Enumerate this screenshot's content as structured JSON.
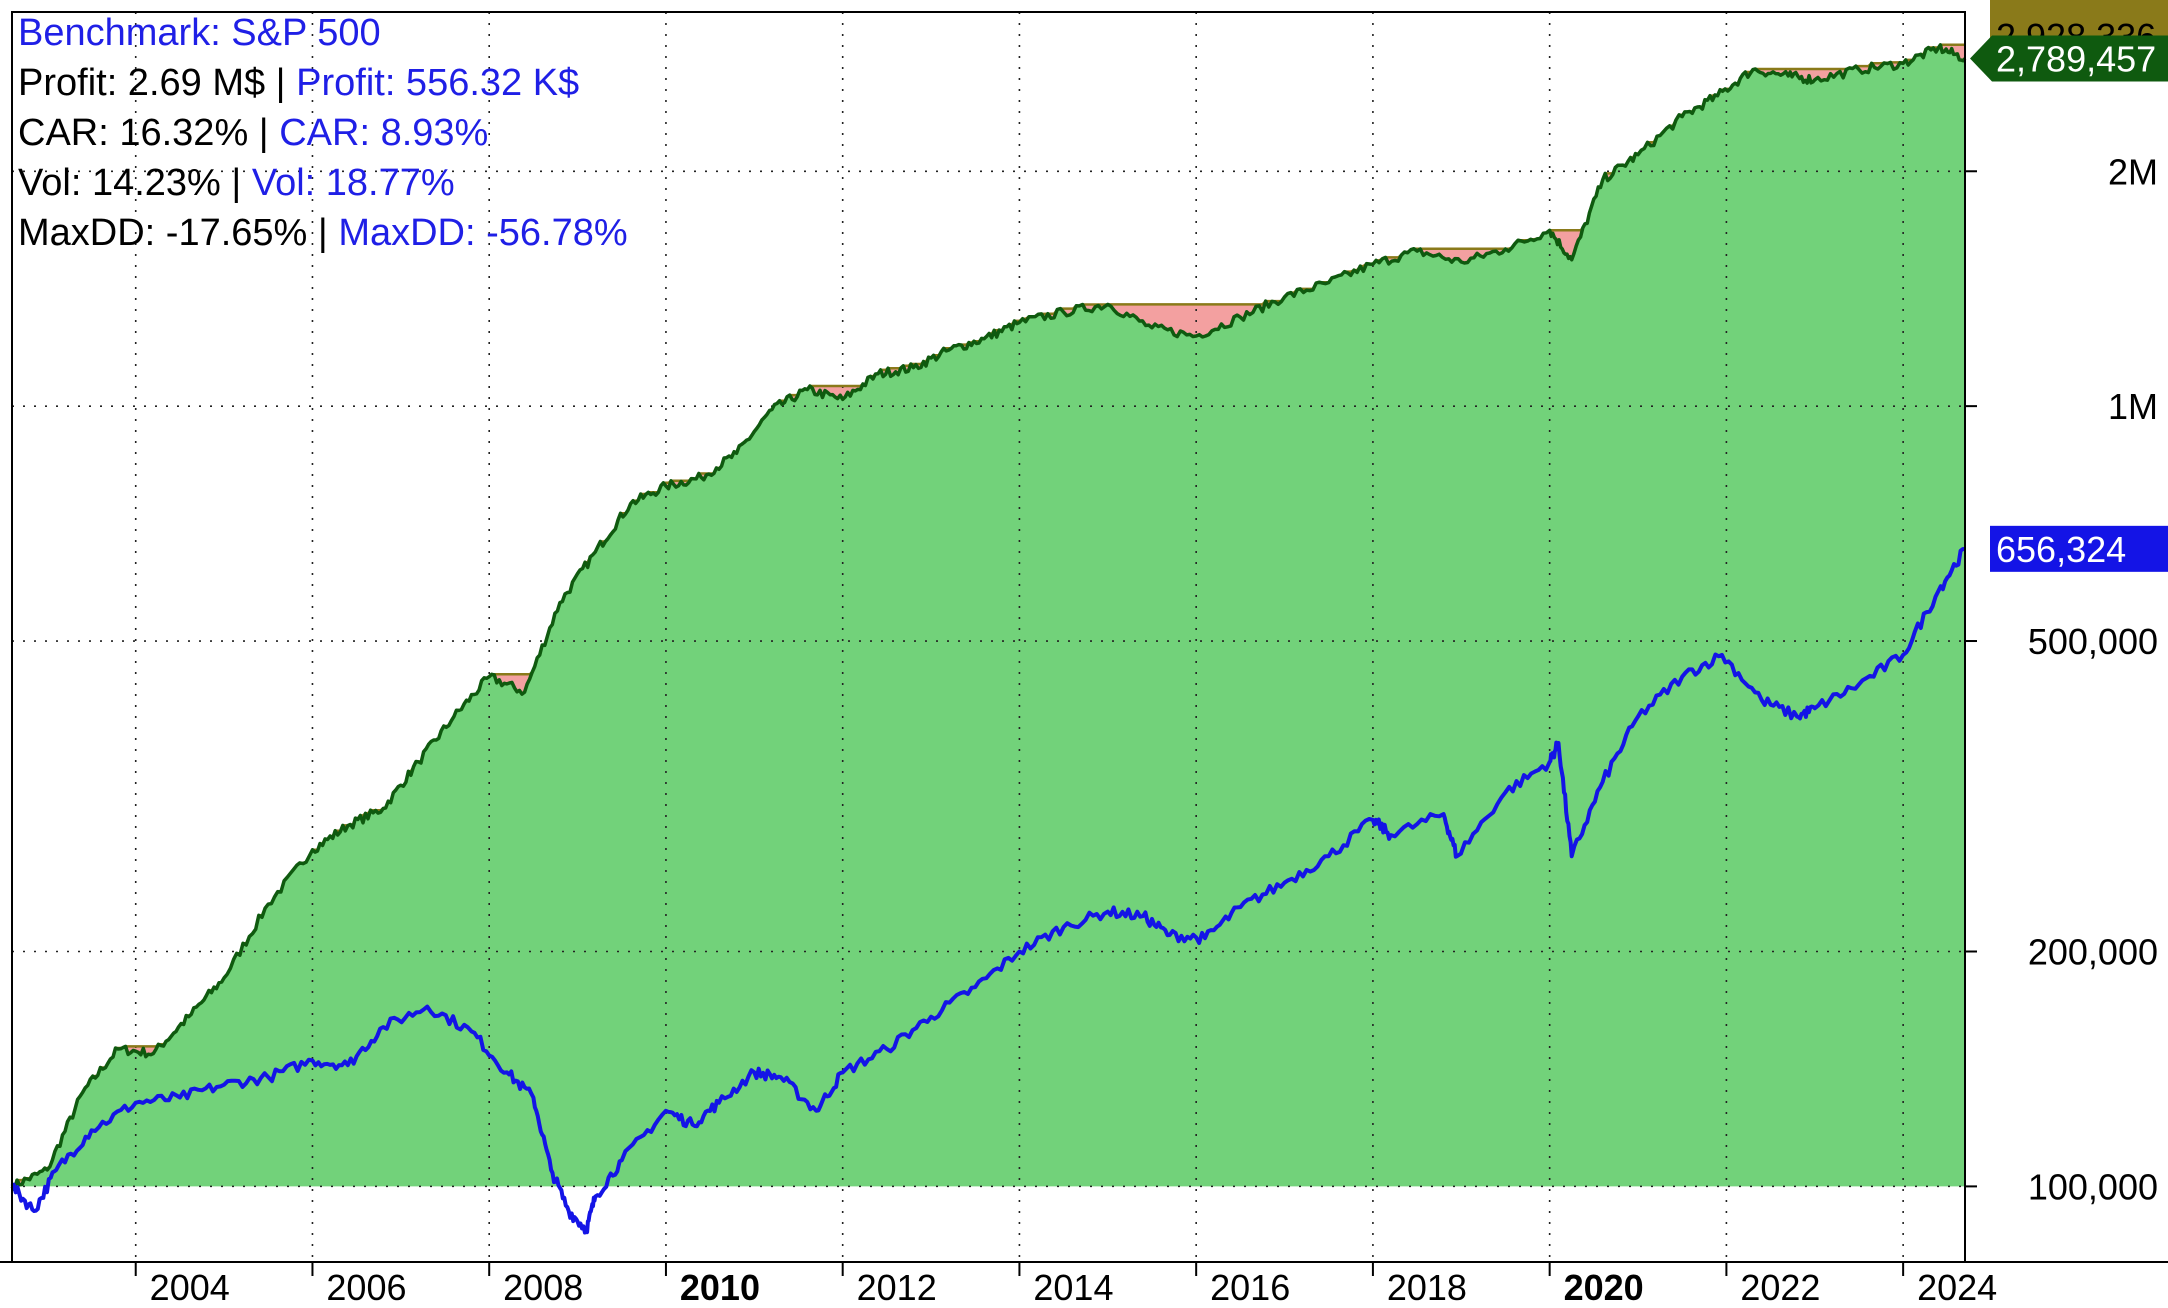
{
  "chart_data": {
    "type": "area",
    "scale": "log",
    "ylim": [
      80000,
      3200000
    ],
    "xlim": [
      2002.6,
      2024.7
    ],
    "grid": true,
    "x_ticks": [
      2004,
      2006,
      2008,
      2010,
      2012,
      2014,
      2016,
      2018,
      2020,
      2022,
      2024
    ],
    "x_tick_labels": [
      "2004",
      "2006",
      "2008",
      "2010",
      "2012",
      "2014",
      "2016",
      "2018",
      "2020",
      "2022",
      "2024"
    ],
    "x_tick_bold": [
      "2010",
      "2020"
    ],
    "y_ticks": [
      100000,
      200000,
      500000,
      1000000,
      2000000
    ],
    "y_tick_labels": [
      "100,000",
      "200,000",
      "500,000",
      "1M",
      "2M"
    ],
    "baseline": 100000,
    "colors": {
      "strategy_fill": "#72d27a",
      "strategy_line": "#0f5a0f",
      "drawdown_fill": "#f3a0a0",
      "peak_line": "#8a7a1a",
      "benchmark_line": "#1414e6",
      "benchmark_tag": "#1414e6",
      "strategy_tag": "#0f5a0f",
      "peak_tag": "#8a7a1a"
    },
    "series": [
      {
        "role": "strategy",
        "x": [
          2002.6,
          2003.0,
          2003.4,
          2003.8,
          2004.2,
          2004.6,
          2005.0,
          2005.5,
          2006.0,
          2006.4,
          2006.8,
          2007.2,
          2007.6,
          2008.0,
          2008.4,
          2008.8,
          2009.2,
          2009.6,
          2010.0,
          2010.4,
          2010.8,
          2011.2,
          2011.6,
          2012.0,
          2012.4,
          2012.8,
          2013.2,
          2013.6,
          2014.0,
          2014.5,
          2015.0,
          2015.5,
          2016.0,
          2016.5,
          2017.0,
          2017.5,
          2018.0,
          2018.5,
          2019.0,
          2019.5,
          2020.0,
          2020.25,
          2020.6,
          2021.0,
          2021.5,
          2021.9,
          2022.3,
          2022.7,
          2023.0,
          2023.5,
          2024.0,
          2024.4,
          2024.7
        ],
        "values": [
          100000,
          105000,
          132000,
          150000,
          148000,
          165000,
          185000,
          230000,
          270000,
          290000,
          305000,
          350000,
          400000,
          450000,
          430000,
          560000,
          650000,
          750000,
          790000,
          810000,
          870000,
          990000,
          1050000,
          1020000,
          1100000,
          1120000,
          1180000,
          1220000,
          1280000,
          1320000,
          1350000,
          1260000,
          1230000,
          1300000,
          1380000,
          1440000,
          1520000,
          1580000,
          1530000,
          1590000,
          1680000,
          1540000,
          1950000,
          2100000,
          2350000,
          2500000,
          2700000,
          2650000,
          2620000,
          2700000,
          2750000,
          2880000,
          2789457
        ]
      },
      {
        "role": "strategy-peak",
        "values": [
          100000,
          105000,
          132000,
          150000,
          150000,
          165000,
          185000,
          230000,
          270000,
          290000,
          305000,
          350000,
          400000,
          450000,
          450000,
          560000,
          650000,
          750000,
          790000,
          810000,
          870000,
          990000,
          1050000,
          1050000,
          1100000,
          1120000,
          1180000,
          1220000,
          1280000,
          1320000,
          1350000,
          1350000,
          1350000,
          1350000,
          1380000,
          1440000,
          1520000,
          1580000,
          1580000,
          1590000,
          1680000,
          1680000,
          1950000,
          2100000,
          2350000,
          2500000,
          2928336,
          2928336,
          2928336,
          2928336,
          2928336,
          2928336,
          2928336
        ]
      },
      {
        "role": "benchmark",
        "x": [
          2002.6,
          2002.85,
          2003.1,
          2003.5,
          2004.0,
          2004.5,
          2005.0,
          2005.5,
          2006.0,
          2006.4,
          2006.8,
          2007.3,
          2007.8,
          2008.2,
          2008.5,
          2008.7,
          2008.9,
          2009.1,
          2009.2,
          2009.5,
          2010.0,
          2010.3,
          2010.6,
          2011.0,
          2011.3,
          2011.7,
          2012.0,
          2012.5,
          2013.0,
          2013.5,
          2014.0,
          2014.5,
          2015.0,
          2015.4,
          2015.7,
          2016.1,
          2016.5,
          2017.0,
          2017.5,
          2018.0,
          2018.2,
          2018.8,
          2018.95,
          2019.5,
          2020.0,
          2020.1,
          2020.25,
          2020.6,
          2021.0,
          2021.5,
          2021.95,
          2022.4,
          2022.8,
          2023.0,
          2023.5,
          2024.0,
          2024.4,
          2024.7
        ],
        "values": [
          100000,
          93000,
          105000,
          118000,
          128000,
          130000,
          135000,
          138000,
          145000,
          143000,
          160000,
          170000,
          158000,
          140000,
          130000,
          105000,
          93000,
          88000,
          97000,
          108000,
          125000,
          120000,
          128000,
          140000,
          138000,
          125000,
          140000,
          150000,
          165000,
          180000,
          200000,
          215000,
          225000,
          222000,
          210000,
          208000,
          228000,
          245000,
          265000,
          295000,
          282000,
          300000,
          265000,
          320000,
          350000,
          370000,
          265000,
          330000,
          400000,
          450000,
          480000,
          420000,
          400000,
          410000,
          440000,
          480000,
          580000,
          656324
        ]
      }
    ],
    "end_labels": {
      "peak": "2,928,336",
      "strategy": "2,789,457",
      "benchmark": "656,324"
    }
  },
  "stats": {
    "benchmark_label": "Benchmark: S&P 500",
    "separator": " | ",
    "rows": [
      {
        "strategy": "Profit: 2.69 M$",
        "benchmark": "Profit: 556.32 K$"
      },
      {
        "strategy": "CAR: 16.32%",
        "benchmark": "CAR: 8.93%"
      },
      {
        "strategy": "Vol: 14.23%",
        "benchmark": "Vol: 18.77%"
      },
      {
        "strategy": "MaxDD: -17.65%",
        "benchmark": "MaxDD: -56.78%"
      }
    ]
  }
}
